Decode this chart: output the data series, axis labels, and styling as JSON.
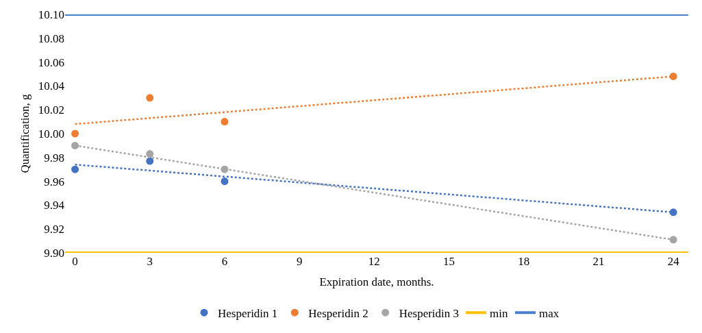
{
  "chart_data": {
    "type": "scatter",
    "xlabel": "Expiration date, months.",
    "ylabel": "Quantification, g",
    "x": [
      0,
      3,
      6,
      24
    ],
    "series": [
      {
        "name": "Hesperidin 1",
        "color": "#4472c4",
        "values": [
          9.97,
          9.977,
          9.96,
          9.934
        ]
      },
      {
        "name": "Hesperidin 2",
        "color": "#ed7d31",
        "values": [
          10.0,
          10.03,
          10.01,
          10.048
        ]
      },
      {
        "name": "Hesperidin 3",
        "color": "#a5a5a5",
        "values": [
          9.99,
          9.983,
          9.97,
          9.911
        ]
      },
      {
        "type": "line",
        "color": "#4472c4",
        "x": [
          0,
          24
        ],
        "values": [
          9.974,
          9.934
        ],
        "line_style": "dotted",
        "marker": "none"
      },
      {
        "type": "line",
        "color": "#ed7d31",
        "x": [
          0,
          24
        ],
        "values": [
          10.008,
          10.048
        ],
        "line_style": "dotted",
        "marker": "none"
      },
      {
        "type": "line",
        "color": "#a5a5a5",
        "x": [
          0,
          24
        ],
        "values": [
          9.99,
          9.911
        ],
        "line_style": "dotted",
        "marker": "none"
      },
      {
        "name": "min",
        "type": "line",
        "color": "#ffc000",
        "x": [
          -0.4,
          24.6
        ],
        "values": [
          9.9,
          9.9
        ],
        "line_style": "solid",
        "marker": "none"
      },
      {
        "name": "max",
        "type": "line",
        "color": "#4a7fd0",
        "x": [
          -0.4,
          24.6
        ],
        "values": [
          10.1,
          10.1
        ],
        "line_style": "solid",
        "marker": "none"
      }
    ],
    "xlim": [
      -0.4,
      24.6
    ],
    "xticks": [
      0,
      3,
      6,
      9,
      12,
      15,
      18,
      21,
      24
    ],
    "ylim": [
      9.9,
      10.1
    ],
    "yticks": [
      {
        "value": 9.9,
        "label": "9.90"
      },
      {
        "value": 9.92,
        "label": "9.92"
      },
      {
        "value": 9.94,
        "label": "9.94"
      },
      {
        "value": 9.96,
        "label": "9.96"
      },
      {
        "value": 9.98,
        "label": "9.98"
      },
      {
        "value": 10.0,
        "label": "10.00"
      },
      {
        "value": 10.02,
        "label": "10.02"
      },
      {
        "value": 10.04,
        "label": "10.04"
      },
      {
        "value": 10.06,
        "label": "10.06"
      },
      {
        "value": 10.08,
        "label": "10.08"
      },
      {
        "value": 10.1,
        "label": "10.10"
      }
    ],
    "marker": "circle",
    "legend": "bottom"
  }
}
